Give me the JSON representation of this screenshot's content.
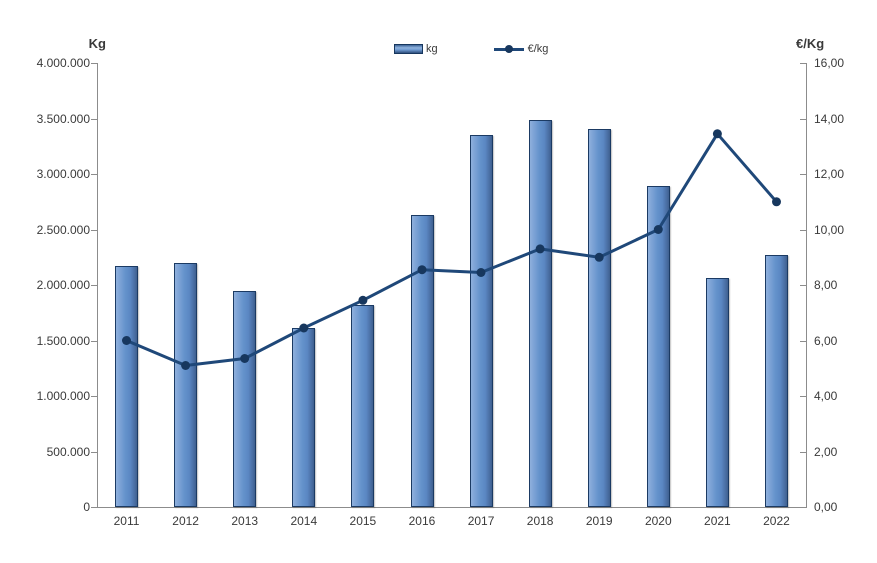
{
  "chart_data": {
    "type": "combo",
    "title": "",
    "categories": [
      "2011",
      "2012",
      "2013",
      "2014",
      "2015",
      "2016",
      "2017",
      "2018",
      "2019",
      "2020",
      "2021",
      "2022"
    ],
    "series": [
      {
        "name": "kg",
        "type": "bar",
        "axis": "left",
        "values": [
          2170000,
          2200000,
          1950000,
          1615000,
          1820000,
          2630000,
          3350000,
          3490000,
          3410000,
          2890000,
          2060000,
          2270000
        ]
      },
      {
        "name": "€/kg",
        "type": "line",
        "axis": "right",
        "values": [
          6.0,
          5.1,
          5.35,
          6.45,
          7.45,
          8.55,
          8.45,
          9.3,
          9.0,
          10.0,
          13.45,
          11.0
        ]
      }
    ],
    "left_axis": {
      "title": "Kg",
      "min": 0,
      "max": 4000000,
      "tick_labels": [
        "4.000.000",
        "3.500.000",
        "3.000.000",
        "2.500.000",
        "2.000.000",
        "1.500.000",
        "1.000.000",
        "500.000",
        "0"
      ]
    },
    "right_axis": {
      "title": "€/Kg",
      "min": 0,
      "max": 16,
      "tick_labels": [
        "16,00",
        "14,00",
        "12,00",
        "10,00",
        "8,00",
        "6,00",
        "4,00",
        "2,00",
        "0,00"
      ]
    },
    "legend": {
      "position": "top",
      "entries": [
        "kg",
        "€/kg"
      ]
    },
    "grid": "off",
    "colors": {
      "bar_fill": "#5b87c3",
      "bar_border": "#17375e",
      "line": "#1f4879",
      "marker": "#17375e",
      "axis": "#8c8c8c",
      "text": "#3a3a3a"
    }
  }
}
